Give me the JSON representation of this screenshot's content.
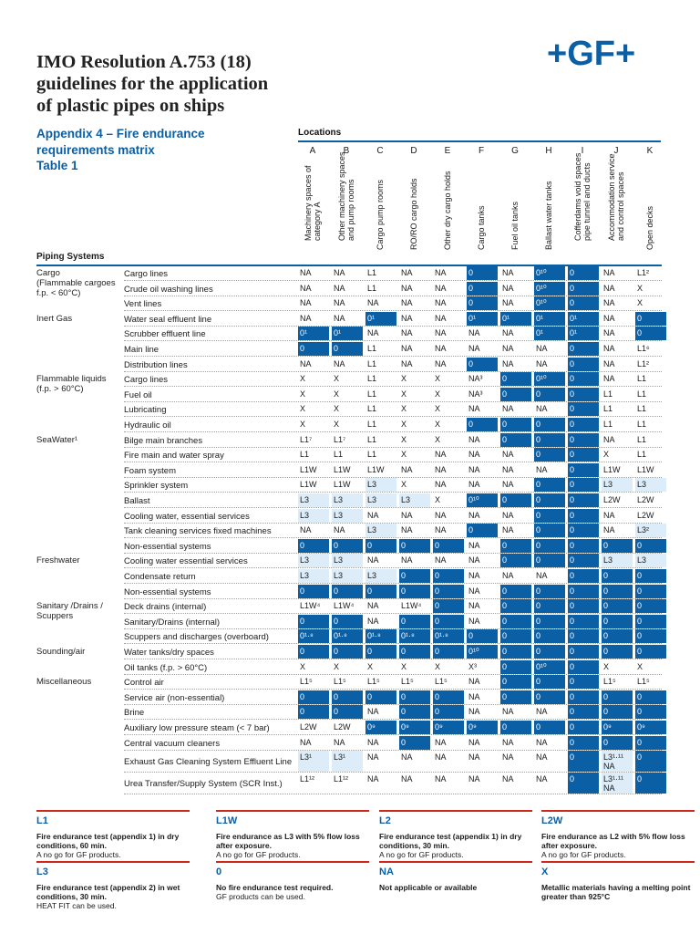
{
  "header": {
    "title_lines": [
      "IMO Resolution A.753 (18)",
      "guidelines for the application",
      "of plastic pipes on ships"
    ],
    "subtitle_lines": [
      "Appendix 4 – Fire endurance",
      "requirements matrix",
      "Table 1"
    ],
    "logo_text": "+GF+"
  },
  "table": {
    "locations_label": "Locations",
    "piping_label": "Piping Systems",
    "columns": [
      {
        "letter": "A",
        "label_lines": [
          "Machinery spaces of",
          "category A"
        ]
      },
      {
        "letter": "B",
        "label_lines": [
          "Other machinery spaces",
          "and pump rooms"
        ]
      },
      {
        "letter": "C",
        "label_lines": [
          "Cargo pump rooms"
        ]
      },
      {
        "letter": "D",
        "label_lines": [
          "RO/RO cargo holds"
        ]
      },
      {
        "letter": "E",
        "label_lines": [
          "Other dry cargo holds"
        ]
      },
      {
        "letter": "F",
        "label_lines": [
          "Cargo tanks"
        ]
      },
      {
        "letter": "G",
        "label_lines": [
          "Fuel oil tanks"
        ]
      },
      {
        "letter": "H",
        "label_lines": [
          "Ballast water tanks"
        ]
      },
      {
        "letter": "I",
        "label_lines": [
          "Cofferdams void spaces",
          "pipe tunnel and ducts"
        ]
      },
      {
        "letter": "J",
        "label_lines": [
          "Accommodation service",
          "and control spaces"
        ]
      },
      {
        "letter": "K",
        "label_lines": [
          "Open decks"
        ]
      }
    ],
    "groups": [
      {
        "label_lines": [
          "Cargo",
          "(Flammable cargoes",
          "f.p. < 60°C)"
        ],
        "row": 0
      },
      {
        "label_lines": [
          "Inert Gas"
        ],
        "row": 3
      },
      {
        "label_lines": [
          "Flammable liquids",
          "(f.p. > 60°C)"
        ],
        "row": 7
      },
      {
        "label_lines": [
          "SeaWater¹"
        ],
        "row": 11
      },
      {
        "label_lines": [
          "Freshwater"
        ],
        "row": 19
      },
      {
        "label_lines": [
          "Sanitary /Drains /",
          "Scuppers"
        ],
        "row": 22
      },
      {
        "label_lines": [
          "Sounding/air"
        ],
        "row": 25
      },
      {
        "label_lines": [
          "Miscellaneous"
        ],
        "row": 27
      }
    ],
    "rows": [
      {
        "system": "Cargo lines",
        "cells": [
          "NA",
          "NA",
          "L1",
          "NA",
          "NA",
          "0",
          "NA",
          "0¹⁰",
          "0",
          "NA",
          "L1²"
        ]
      },
      {
        "system": "Crude oil washing lines",
        "cells": [
          "NA",
          "NA",
          "L1",
          "NA",
          "NA",
          "0",
          "NA",
          "0¹⁰",
          "0",
          "NA",
          "X"
        ]
      },
      {
        "system": "Vent lines",
        "cells": [
          "NA",
          "NA",
          "NA",
          "NA",
          "NA",
          "0",
          "NA",
          "0¹⁰",
          "0",
          "NA",
          "X"
        ]
      },
      {
        "system": "Water seal effluent line",
        "cells": [
          "NA",
          "NA",
          "0¹",
          "NA",
          "NA",
          "0¹",
          "0¹",
          "0¹",
          "0¹",
          "NA",
          "0"
        ]
      },
      {
        "system": "Scrubber effluent line",
        "cells": [
          "0¹",
          "0¹",
          "NA",
          "NA",
          "NA",
          "NA",
          "NA",
          "0¹",
          "0¹",
          "NA",
          "0"
        ]
      },
      {
        "system": "Main line",
        "cells": [
          "0",
          "0",
          "L1",
          "NA",
          "NA",
          "NA",
          "NA",
          "NA",
          "0",
          "NA",
          "L1⁶"
        ]
      },
      {
        "system": "Distribution lines",
        "cells": [
          "NA",
          "NA",
          "L1",
          "NA",
          "NA",
          "0",
          "NA",
          "NA",
          "0",
          "NA",
          "L1²"
        ]
      },
      {
        "system": "Cargo lines",
        "cells": [
          "X",
          "X",
          "L1",
          "X",
          "X",
          "NA³",
          "0",
          "0¹⁰",
          "0",
          "NA",
          "L1"
        ]
      },
      {
        "system": "Fuel oil",
        "cells": [
          "X",
          "X",
          "L1",
          "X",
          "X",
          "NA³",
          "0",
          "0",
          "0",
          "L1",
          "L1"
        ]
      },
      {
        "system": "Lubricating",
        "cells": [
          "X",
          "X",
          "L1",
          "X",
          "X",
          "NA",
          "NA",
          "NA",
          "0",
          "L1",
          "L1"
        ]
      },
      {
        "system": "Hydraulic oil",
        "cells": [
          "X",
          "X",
          "L1",
          "X",
          "X",
          "0",
          "0",
          "0",
          "0",
          "L1",
          "L1"
        ]
      },
      {
        "system": "Bilge main branches",
        "cells": [
          "L1⁷",
          "L1⁷",
          "L1",
          "X",
          "X",
          "NA",
          "0",
          "0",
          "0",
          "NA",
          "L1"
        ]
      },
      {
        "system": "Fire main and water spray",
        "cells": [
          "L1",
          "L1",
          "L1",
          "X",
          "NA",
          "NA",
          "NA",
          "0",
          "0",
          "X",
          "L1"
        ]
      },
      {
        "system": "Foam system",
        "cells": [
          "L1W",
          "L1W",
          "L1W",
          "NA",
          "NA",
          "NA",
          "NA",
          "NA",
          "0",
          "L1W",
          "L1W"
        ]
      },
      {
        "system": "Sprinkler system",
        "cells": [
          "L1W",
          "L1W",
          "L3",
          "X",
          "NA",
          "NA",
          "NA",
          "0",
          "0",
          "L3",
          "L3"
        ]
      },
      {
        "system": "Ballast",
        "cells": [
          "L3",
          "L3",
          "L3",
          "L3",
          "X",
          "0¹⁰",
          "0",
          "0",
          "0",
          "L2W",
          "L2W"
        ]
      },
      {
        "system": "Cooling water, essential services",
        "cells": [
          "L3",
          "L3",
          "NA",
          "NA",
          "NA",
          "NA",
          "NA",
          "0",
          "0",
          "NA",
          "L2W"
        ]
      },
      {
        "system": "Tank cleaning services fixed machines",
        "cells": [
          "NA",
          "NA",
          "L3",
          "NA",
          "NA",
          "0",
          "NA",
          "0",
          "0",
          "NA",
          "L3²"
        ]
      },
      {
        "system": "Non-essential systems",
        "cells": [
          "0",
          "0",
          "0",
          "0",
          "0",
          "NA",
          "0",
          "0",
          "0",
          "0",
          "0"
        ]
      },
      {
        "system": "Cooling water essential services",
        "cells": [
          "L3",
          "L3",
          "NA",
          "NA",
          "NA",
          "NA",
          "0",
          "0",
          "0",
          "L3",
          "L3"
        ]
      },
      {
        "system": "Condensate return",
        "cells": [
          "L3",
          "L3",
          "L3",
          "0",
          "0",
          "NA",
          "NA",
          "NA",
          "0",
          "0",
          "0"
        ]
      },
      {
        "system": "Non-essential systems",
        "cells": [
          "0",
          "0",
          "0",
          "0",
          "0",
          "NA",
          "0",
          "0",
          "0",
          "0",
          "0"
        ]
      },
      {
        "system": "Deck drains (internal)",
        "cells": [
          "L1W⁴",
          "L1W⁴",
          "NA",
          "L1W⁴",
          "0",
          "NA",
          "0",
          "0",
          "0",
          "0",
          "0"
        ]
      },
      {
        "system": "Sanitary/Drains (internal)",
        "cells": [
          "0",
          "0",
          "NA",
          "0",
          "0",
          "NA",
          "0",
          "0",
          "0",
          "0",
          "0"
        ]
      },
      {
        "system": "Scuppers and discharges (overboard)",
        "cells": [
          "0¹·⁸",
          "0¹·⁸",
          "0¹·⁸",
          "0¹·⁸",
          "0¹·⁸",
          "0",
          "0",
          "0",
          "0",
          "0",
          "0"
        ]
      },
      {
        "system": "Water tanks/dry spaces",
        "cells": [
          "0",
          "0",
          "0",
          "0",
          "0",
          "0¹⁰",
          "0",
          "0",
          "0",
          "0",
          "0"
        ]
      },
      {
        "system": "Oil tanks (f.p. > 60°C)",
        "cells": [
          "X",
          "X",
          "X",
          "X",
          "X",
          "X³",
          "0",
          "0¹⁰",
          "0",
          "X",
          "X"
        ]
      },
      {
        "system": "Control air",
        "cells": [
          "L1⁵",
          "L1⁵",
          "L1⁵",
          "L1⁵",
          "L1⁵",
          "NA",
          "0",
          "0",
          "0",
          "L1⁵",
          "L1⁵"
        ]
      },
      {
        "system": "Service air (non-essential)",
        "cells": [
          "0",
          "0",
          "0",
          "0",
          "0",
          "NA",
          "0",
          "0",
          "0",
          "0",
          "0"
        ]
      },
      {
        "system": "Brine",
        "cells": [
          "0",
          "0",
          "NA",
          "0",
          "0",
          "NA",
          "NA",
          "NA",
          "0",
          "0",
          "0"
        ]
      },
      {
        "system": "Auxiliary low pressure steam (< 7 bar)",
        "cells": [
          "L2W",
          "L2W",
          "0⁹",
          "0⁹",
          "0⁹",
          "0⁹",
          "0",
          "0",
          "0",
          "0⁹",
          "0⁹"
        ]
      },
      {
        "system": "Central vacuum cleaners",
        "cells": [
          "NA",
          "NA",
          "NA",
          "0",
          "NA",
          "NA",
          "NA",
          "NA",
          "0",
          "0",
          "0"
        ]
      },
      {
        "system": "Exhaust Gas Cleaning System Effluent Line",
        "cells": [
          "L3¹",
          "L3¹",
          "NA",
          "NA",
          "NA",
          "NA",
          "NA",
          "NA",
          "0",
          "L3¹·¹¹ NA",
          "0"
        ]
      },
      {
        "system": "Urea Transfer/Supply System (SCR Inst.)",
        "cells": [
          "L1¹²",
          "L1¹²",
          "NA",
          "NA",
          "NA",
          "NA",
          "NA",
          "NA",
          "0",
          "L3¹·¹¹ NA",
          "0"
        ]
      }
    ]
  },
  "legend": [
    {
      "code": "L1",
      "desc": "Fire endurance test (appendix 1) in dry conditions, 60 min.",
      "note": "A no go for GF products."
    },
    {
      "code": "L1W",
      "desc": "Fire endurance as L3 with 5% flow loss after exposure.",
      "note": "A no go for GF products."
    },
    {
      "code": "L2",
      "desc": "Fire endurance test (appendix 1) in dry conditions, 30 min.",
      "note": "A no go for GF products."
    },
    {
      "code": "L2W",
      "desc": "Fire endurance as L2 with 5% flow loss after exposure.",
      "note": "A no go for GF products."
    },
    {
      "code": "L3",
      "desc": "Fire endurance test (appendix 2) in wet conditions, 30 min.",
      "note": "HEAT FIT can be used."
    },
    {
      "code": "0",
      "desc": "No fire endurance test required.",
      "note": "GF products can be used."
    },
    {
      "code": "NA",
      "desc": "Not applicable or available",
      "note": ""
    },
    {
      "code": "X",
      "desc": "Metallic materials having a melting point greater than 925°C",
      "note": ""
    }
  ],
  "colors": {
    "accent": "#0b5fa5",
    "light": "#dcecf8",
    "legend_rule": "#d0271d"
  }
}
